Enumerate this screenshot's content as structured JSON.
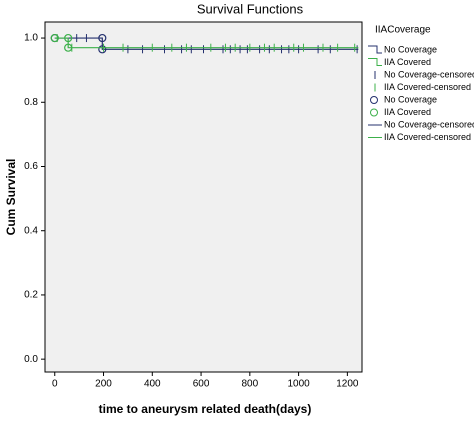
{
  "chart_data": {
    "type": "survival",
    "title": "Survival Functions",
    "x_label": "time to aneurysm related death(days)",
    "y_label": "Cum Survival",
    "xlim": [
      -40,
      1260
    ],
    "ylim": [
      -0.04,
      1.05
    ],
    "xticks": [
      0,
      200,
      400,
      600,
      800,
      1000,
      1200
    ],
    "yticks": [
      {
        "value": 0,
        "label": "0.0"
      },
      {
        "value": 0.2,
        "label": "0.2"
      },
      {
        "value": 0.4,
        "label": "0.4"
      },
      {
        "value": 0.6,
        "label": "0.6"
      },
      {
        "value": 0.8,
        "label": "0.8"
      },
      {
        "value": 1,
        "label": "1.0"
      }
    ],
    "background": "#f0f0f0",
    "series": [
      {
        "name": "No Coverage",
        "color": "#24306e",
        "x": [
          0,
          195,
          195,
          1245
        ],
        "values": [
          1,
          1,
          0.965,
          0.965
        ],
        "censored_x": [
          90,
          130,
          300,
          360,
          450,
          520,
          560,
          610,
          690,
          720,
          760,
          790,
          840,
          880,
          930,
          960,
          1000,
          1080,
          1130,
          1240
        ],
        "censored_values": [
          1,
          1,
          0.965,
          0.965,
          0.965,
          0.965,
          0.965,
          0.965,
          0.965,
          0.965,
          0.965,
          0.965,
          0.965,
          0.965,
          0.965,
          0.965,
          0.965,
          0.965,
          0.965,
          0.965
        ],
        "circle_x": [
          0,
          195,
          195
        ],
        "circle_values": [
          1,
          1,
          0.965
        ]
      },
      {
        "name": "IIA Covered",
        "color": "#3cb04a",
        "x": [
          0,
          55,
          55,
          1245
        ],
        "values": [
          1,
          1,
          0.97,
          0.97
        ],
        "censored_x": [
          10,
          70,
          200,
          280,
          400,
          480,
          540,
          640,
          700,
          740,
          800,
          860,
          900,
          980,
          1020,
          1100,
          1160,
          1230
        ],
        "censored_values": [
          1,
          0.97,
          0.97,
          0.97,
          0.97,
          0.97,
          0.97,
          0.97,
          0.97,
          0.97,
          0.97,
          0.97,
          0.97,
          0.97,
          0.97,
          0.97,
          0.97,
          0.97
        ],
        "circle_x": [
          0,
          55,
          55
        ],
        "circle_values": [
          1,
          1,
          0.97
        ]
      }
    ],
    "legend": {
      "title": "IIACoverage",
      "entries": [
        {
          "label": "No Coverage",
          "color": "#24306e",
          "symbol": "step"
        },
        {
          "label": "IIA Covered",
          "color": "#3cb04a",
          "symbol": "step"
        },
        {
          "label": "No Coverage-censored",
          "color": "#24306e",
          "symbol": "tick"
        },
        {
          "label": "IIA Covered-censored",
          "color": "#3cb04a",
          "symbol": "tick"
        },
        {
          "label": "No Coverage",
          "color": "#24306e",
          "symbol": "circle"
        },
        {
          "label": "IIA Covered",
          "color": "#3cb04a",
          "symbol": "circle"
        },
        {
          "label": "No Coverage-censored",
          "color": "#24306e",
          "symbol": "line"
        },
        {
          "label": "IIA Covered-censored",
          "color": "#3cb04a",
          "symbol": "line"
        }
      ]
    }
  }
}
